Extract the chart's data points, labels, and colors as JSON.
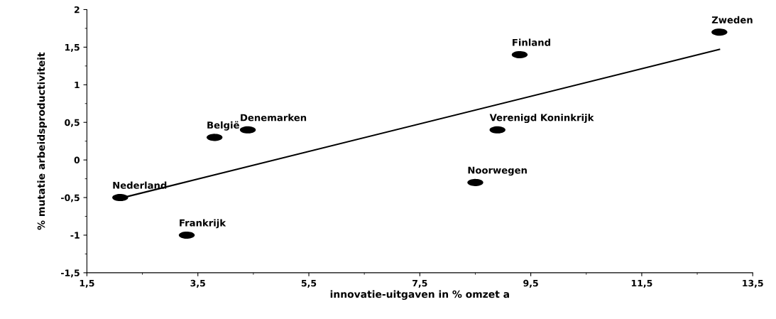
{
  "chart_data": {
    "type": "scatter",
    "xlabel": "innovatie-uitgaven in % omzet a",
    "ylabel": "% mutatie arbeidsproductiviteit",
    "x": [
      2.1,
      3.3,
      3.8,
      4.4,
      8.5,
      8.9,
      9.3,
      12.9
    ],
    "series": [
      {
        "color": "#000000",
        "values": [
          -0.5,
          -1,
          0.3,
          0.4,
          -0.3,
          0.4,
          1.4,
          1.7
        ]
      },
      {
        "type": "line",
        "marker": "none",
        "color": "#000000",
        "x": [
          2.1,
          12.9
        ],
        "values": [
          -0.51,
          1.47
        ]
      }
    ],
    "annotations": [
      {
        "text": "Nederland",
        "x": 2.1,
        "y": -0.5
      },
      {
        "text": "Frankrijk",
        "x": 3.3,
        "y": -1
      },
      {
        "text": "België",
        "x": 3.8,
        "y": 0.3
      },
      {
        "text": "Denemarken",
        "x": 4.4,
        "y": 0.4
      },
      {
        "text": "Noorwegen",
        "x": 8.5,
        "y": -0.3
      },
      {
        "text": "Verenigd Koninkrijk",
        "x": 8.9,
        "y": 0.4
      },
      {
        "text": "Finland",
        "x": 9.3,
        "y": 1.4
      },
      {
        "text": "Zweden",
        "x": 12.9,
        "y": 1.7
      }
    ],
    "xlim": [
      1.5,
      13.5
    ],
    "ylim": [
      -1.5,
      2
    ],
    "xticks": [
      {
        "value": 1.5,
        "label": "1,5"
      },
      {
        "value": 3.5,
        "label": "3,5"
      },
      {
        "value": 5.5,
        "label": "5,5"
      },
      {
        "value": 7.5,
        "label": "7,5"
      },
      {
        "value": 9.5,
        "label": "9,5"
      },
      {
        "value": 11.5,
        "label": "11,5"
      },
      {
        "value": 13.5,
        "label": "13,5"
      }
    ],
    "yticks": [
      {
        "value": -1.5,
        "label": "-1,5"
      },
      {
        "value": -1,
        "label": "-1"
      },
      {
        "value": -0.5,
        "label": "-0,5"
      },
      0,
      {
        "value": 0.5,
        "label": "0,5"
      },
      1,
      {
        "value": 1.5,
        "label": "1,5"
      },
      2
    ],
    "marker": "circle",
    "grid": false,
    "legend": false
  }
}
